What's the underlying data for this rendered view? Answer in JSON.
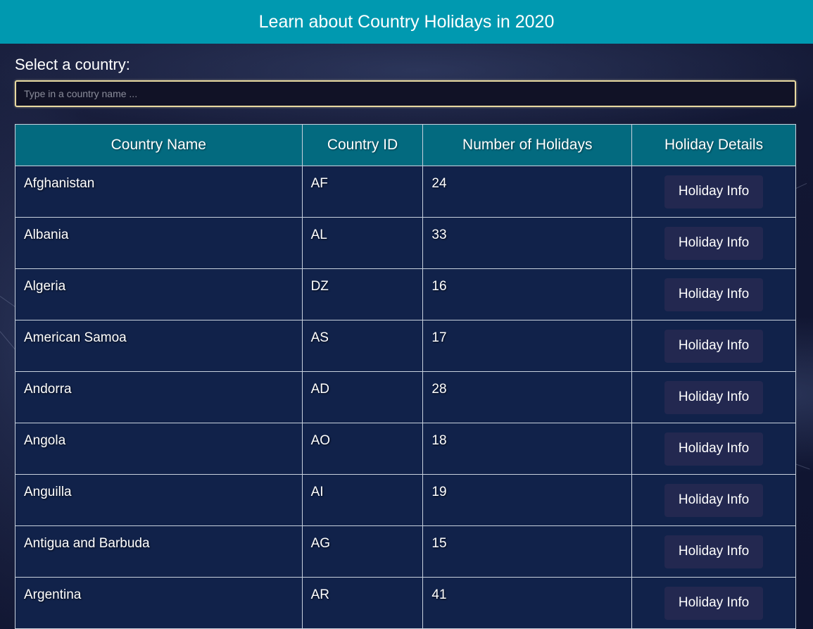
{
  "header": {
    "title": "Learn about Country Holidays in 2020"
  },
  "search": {
    "label": "Select a country:",
    "placeholder": "Type in a country name ..."
  },
  "table": {
    "columns": [
      "Country Name",
      "Country ID",
      "Number of Holidays",
      "Holiday Details"
    ],
    "button_label": "Holiday Info",
    "rows": [
      {
        "name": "Afghanistan",
        "id": "AF",
        "holidays": "24"
      },
      {
        "name": "Albania",
        "id": "AL",
        "holidays": "33"
      },
      {
        "name": "Algeria",
        "id": "DZ",
        "holidays": "16"
      },
      {
        "name": "American Samoa",
        "id": "AS",
        "holidays": "17"
      },
      {
        "name": "Andorra",
        "id": "AD",
        "holidays": "28"
      },
      {
        "name": "Angola",
        "id": "AO",
        "holidays": "18"
      },
      {
        "name": "Anguilla",
        "id": "AI",
        "holidays": "19"
      },
      {
        "name": "Antigua and Barbuda",
        "id": "AG",
        "holidays": "15"
      },
      {
        "name": "Argentina",
        "id": "AR",
        "holidays": "41"
      }
    ]
  }
}
